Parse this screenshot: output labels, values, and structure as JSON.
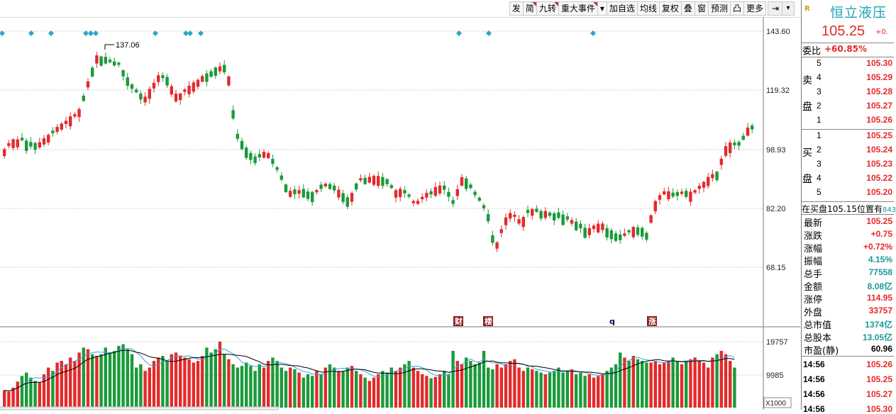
{
  "toolbar": {
    "buttons": [
      "发",
      "简",
      "九转",
      "重大事件",
      "▾",
      "加自选",
      "均线",
      "复权",
      "叠",
      "窗",
      "预测",
      "凸",
      "更多"
    ],
    "expand_icon": "⇥",
    "menu_icon": "▾"
  },
  "chart_data": {
    "type": "candlestick",
    "price_axis": {
      "labels": [
        "143.60",
        "119.32",
        "98.93",
        "82.20",
        "68.15"
      ]
    },
    "volume_axis": {
      "labels": [
        "19757",
        "9985"
      ],
      "unit": "X1000"
    },
    "high_label": "137.06",
    "event_markers": [
      "财",
      "楼",
      "q",
      "涨"
    ],
    "colors": {
      "up": "#e42a2a",
      "down": "#1a9a3a",
      "marker": "#2aa8c8",
      "ma_short": "#3aa0e0",
      "ma_long": "#000000"
    },
    "volume_values": [
      5200,
      4800,
      6000,
      7800,
      9500,
      10500,
      9000,
      8000,
      7500,
      10000,
      12000,
      11000,
      13500,
      14000,
      13000,
      15000,
      14000,
      16500,
      18000,
      17500,
      16000,
      15500,
      16000,
      18000,
      16500,
      17000,
      18500,
      19000,
      17500,
      16000,
      12000,
      13000,
      11000,
      12000,
      14000,
      15000,
      15500,
      14000,
      16000,
      16500,
      15500,
      15000,
      14500,
      13500,
      14000,
      15500,
      18000,
      16500,
      17500,
      19757,
      16000,
      14500,
      13000,
      12000,
      12500,
      13500,
      12500,
      11000,
      13000,
      12000,
      14000,
      15000,
      14000,
      12000,
      11000,
      12000,
      11500,
      10500,
      9000,
      10000,
      9500,
      11000,
      10000,
      12000,
      13000,
      12000,
      11000,
      11000,
      12000,
      12500,
      11000,
      10000,
      9000,
      8000,
      9000,
      10000,
      11000,
      10500,
      12000,
      11000,
      12000,
      13000,
      14000,
      12000,
      11000,
      10000,
      9500,
      8800,
      9200,
      10000,
      11000,
      10000,
      17000,
      14000,
      13000,
      15000,
      14000,
      13000,
      13500,
      17000,
      12000,
      11500,
      13000,
      12000,
      13000,
      14000,
      14500,
      12000,
      11000,
      12000,
      11500,
      11000,
      10500,
      10000,
      10500,
      11000,
      12000,
      10500,
      11000,
      11500,
      10000,
      10500,
      9500,
      10000,
      9000,
      9500,
      10000,
      11000,
      12000,
      13000,
      16500,
      15000,
      14000,
      15500,
      14500,
      14000,
      13500,
      13500,
      14000,
      13000,
      13500,
      14000,
      15000,
      14000,
      13000,
      14000,
      14500,
      15000,
      14000,
      13500,
      12000,
      15000,
      16000,
      17000,
      16000,
      14000,
      12000
    ]
  },
  "panel": {
    "stock_tag": "R",
    "stock_name": "恒立液压",
    "price": "105.25",
    "change_short": "+0.",
    "weibi_label": "委比",
    "weibi_value": "+60.85%",
    "sell_side_label": [
      "卖",
      "盘"
    ],
    "buy_side_label": [
      "买",
      "盘"
    ],
    "sell_levels": [
      {
        "level": "5",
        "price": "105.30"
      },
      {
        "level": "4",
        "price": "105.29"
      },
      {
        "level": "3",
        "price": "105.28"
      },
      {
        "level": "2",
        "price": "105.27"
      },
      {
        "level": "1",
        "price": "105.26"
      }
    ],
    "buy_levels": [
      {
        "level": "1",
        "price": "105.25"
      },
      {
        "level": "2",
        "price": "105.24"
      },
      {
        "level": "3",
        "price": "105.23"
      },
      {
        "level": "4",
        "price": "105.22"
      },
      {
        "level": "5",
        "price": "105.20"
      }
    ],
    "inside_text": "在买盘105.15位置有",
    "inside_extra": "843",
    "stats": [
      {
        "label": "最新",
        "value": "105.25",
        "color": "red"
      },
      {
        "label": "涨跌",
        "value": "+0.75",
        "color": "red"
      },
      {
        "label": "涨幅",
        "value": "+0.72%",
        "color": "red"
      },
      {
        "label": "振幅",
        "value": "4.15%",
        "color": "teal"
      },
      {
        "label": "总手",
        "value": "77558",
        "color": "teal"
      },
      {
        "label": "金额",
        "value": "8.08亿",
        "color": "teal"
      },
      {
        "label": "涨停",
        "value": "114.95",
        "color": "red"
      },
      {
        "label": "外盘",
        "value": "33757",
        "color": "red"
      },
      {
        "label": "总市值",
        "value": "1374亿",
        "color": "teal"
      },
      {
        "label": "总股本",
        "value": "13.05亿",
        "color": "teal"
      },
      {
        "label": "市盈(静)",
        "value": "60.96",
        "color": "dark"
      }
    ],
    "trades": [
      {
        "time": "14:56",
        "price": "105.26"
      },
      {
        "time": "14:56",
        "price": "105.25"
      },
      {
        "time": "14:56",
        "price": "105.27"
      },
      {
        "time": "14:56",
        "price": "105.30"
      }
    ]
  }
}
